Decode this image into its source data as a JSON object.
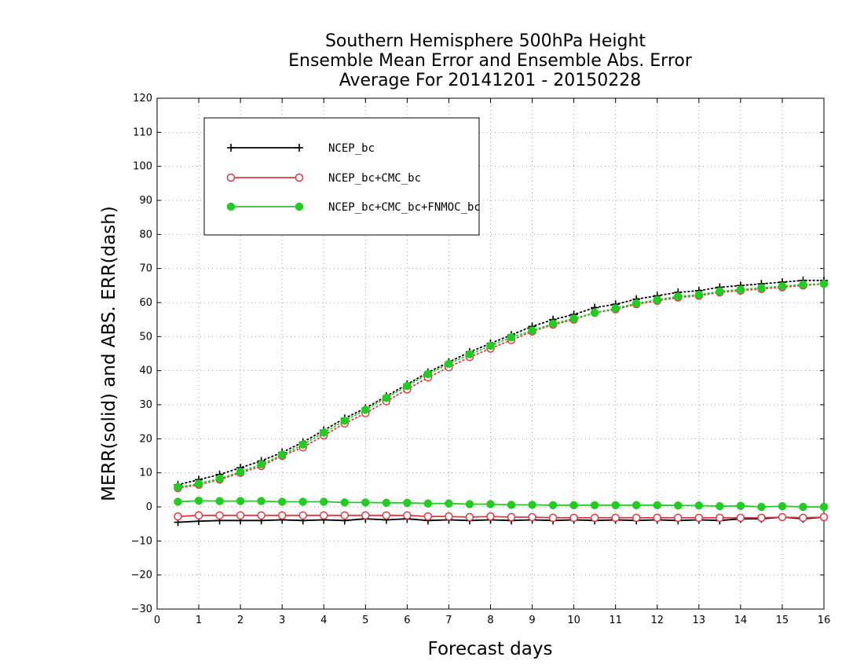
{
  "chart_data": {
    "type": "line",
    "title": [
      "Southern Hemisphere 500hPa Height",
      "Ensemble Mean Error and Ensemble Abs. Error",
      "Average For 20141201 - 20150228"
    ],
    "xlabel": "Forecast days",
    "ylabel": "MERR(solid) and ABS. ERR(dash)",
    "xlim": [
      0,
      16
    ],
    "ylim": [
      -30,
      120
    ],
    "xticks": [
      0,
      1,
      2,
      3,
      4,
      5,
      6,
      7,
      8,
      9,
      10,
      11,
      12,
      13,
      14,
      15,
      16
    ],
    "yticks": [
      -30,
      -20,
      -10,
      0,
      10,
      20,
      30,
      40,
      50,
      60,
      70,
      80,
      90,
      100,
      110,
      120
    ],
    "grid": true,
    "legend_position": "top-left",
    "x": [
      0.5,
      1,
      1.5,
      2,
      2.5,
      3,
      3.5,
      4,
      4.5,
      5,
      5.5,
      6,
      6.5,
      7,
      7.5,
      8,
      8.5,
      9,
      9.5,
      10,
      10.5,
      11,
      11.5,
      12,
      12.5,
      13,
      13.5,
      14,
      14.5,
      15,
      15.5,
      16
    ],
    "series": [
      {
        "name": "NCEP_bc",
        "color": "#000000",
        "marker": "plus",
        "merr": [
          -4.5,
          -4.2,
          -4.0,
          -4.0,
          -4.0,
          -3.8,
          -4.0,
          -3.8,
          -4.0,
          -3.5,
          -3.8,
          -3.5,
          -4.0,
          -3.8,
          -4.0,
          -3.8,
          -4.0,
          -3.8,
          -4.0,
          -3.8,
          -4.0,
          -3.8,
          -4.0,
          -3.8,
          -4.0,
          -3.8,
          -4.0,
          -3.5,
          -3.5,
          -3.0,
          -3.5,
          -3.0
        ],
        "abs_err": [
          6.5,
          8.0,
          9.5,
          11.5,
          13.5,
          16.0,
          19.0,
          22.5,
          26.0,
          29.0,
          32.5,
          36.0,
          39.5,
          42.5,
          45.5,
          48.0,
          50.5,
          53.0,
          55.0,
          56.5,
          58.5,
          59.5,
          61.0,
          62.0,
          63.0,
          63.5,
          64.5,
          65.0,
          65.5,
          66.0,
          66.5,
          66.5
        ]
      },
      {
        "name": "NCEP_bc+CMC_bc",
        "color": "#e0383f",
        "marker": "open-circle",
        "merr": [
          -2.8,
          -2.5,
          -2.5,
          -2.5,
          -2.5,
          -2.5,
          -2.5,
          -2.5,
          -2.5,
          -2.5,
          -2.5,
          -2.5,
          -2.8,
          -2.8,
          -3.0,
          -2.8,
          -3.0,
          -3.0,
          -3.2,
          -3.2,
          -3.2,
          -3.2,
          -3.2,
          -3.2,
          -3.2,
          -3.2,
          -3.2,
          -3.2,
          -3.2,
          -3.0,
          -3.2,
          -3.0
        ],
        "abs_err": [
          5.5,
          6.5,
          8.0,
          10.0,
          12.0,
          15.0,
          17.5,
          21.0,
          24.5,
          27.5,
          31.0,
          34.5,
          38.0,
          41.0,
          44.0,
          46.5,
          49.0,
          51.5,
          53.5,
          55.0,
          57.0,
          58.0,
          59.5,
          60.5,
          61.5,
          62.0,
          63.0,
          63.5,
          64.0,
          64.5,
          65.0,
          65.5
        ]
      },
      {
        "name": "NCEP_bc+CMC_bc+FNMOC_bc",
        "color": "#22cc22",
        "marker": "filled-circle",
        "merr": [
          1.5,
          1.8,
          1.7,
          1.7,
          1.7,
          1.5,
          1.5,
          1.5,
          1.3,
          1.3,
          1.2,
          1.2,
          1.0,
          1.0,
          0.8,
          0.8,
          0.6,
          0.6,
          0.5,
          0.5,
          0.5,
          0.5,
          0.5,
          0.5,
          0.4,
          0.4,
          0.2,
          0.3,
          0.0,
          0.2,
          0.0,
          0.0
        ],
        "abs_err": [
          5.8,
          6.8,
          8.3,
          10.3,
          12.5,
          15.3,
          18.3,
          21.8,
          25.3,
          28.5,
          32.0,
          35.5,
          39.0,
          42.0,
          44.8,
          47.3,
          49.8,
          51.8,
          53.8,
          55.3,
          57.0,
          58.3,
          59.8,
          60.8,
          61.8,
          62.3,
          63.3,
          63.8,
          64.3,
          64.8,
          65.3,
          65.5
        ]
      }
    ]
  }
}
